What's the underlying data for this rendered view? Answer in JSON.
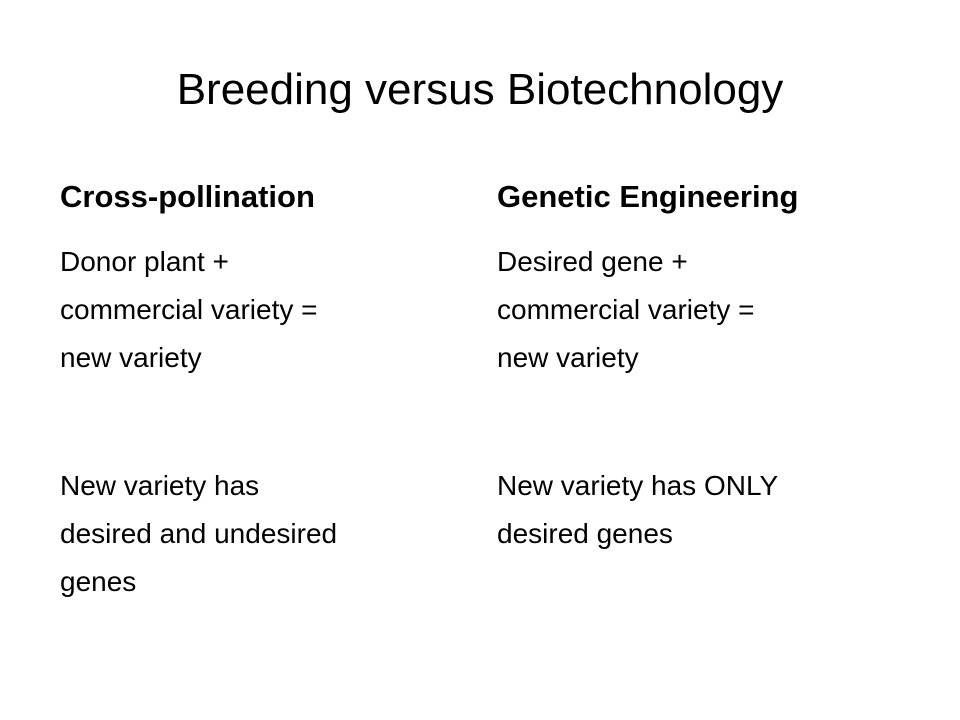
{
  "title": "Breeding versus Biotechnology",
  "columns": [
    {
      "heading": "Cross-pollination",
      "paragraphs": [
        [
          "Donor plant +",
          "commercial variety =",
          "new variety"
        ],
        [
          "New variety has",
          "desired and undesired",
          "genes"
        ]
      ]
    },
    {
      "heading": "Genetic Engineering",
      "paragraphs": [
        [
          "Desired gene +",
          "commercial variety =",
          "new variety"
        ],
        [
          "New variety has ONLY",
          "desired genes"
        ]
      ]
    }
  ]
}
